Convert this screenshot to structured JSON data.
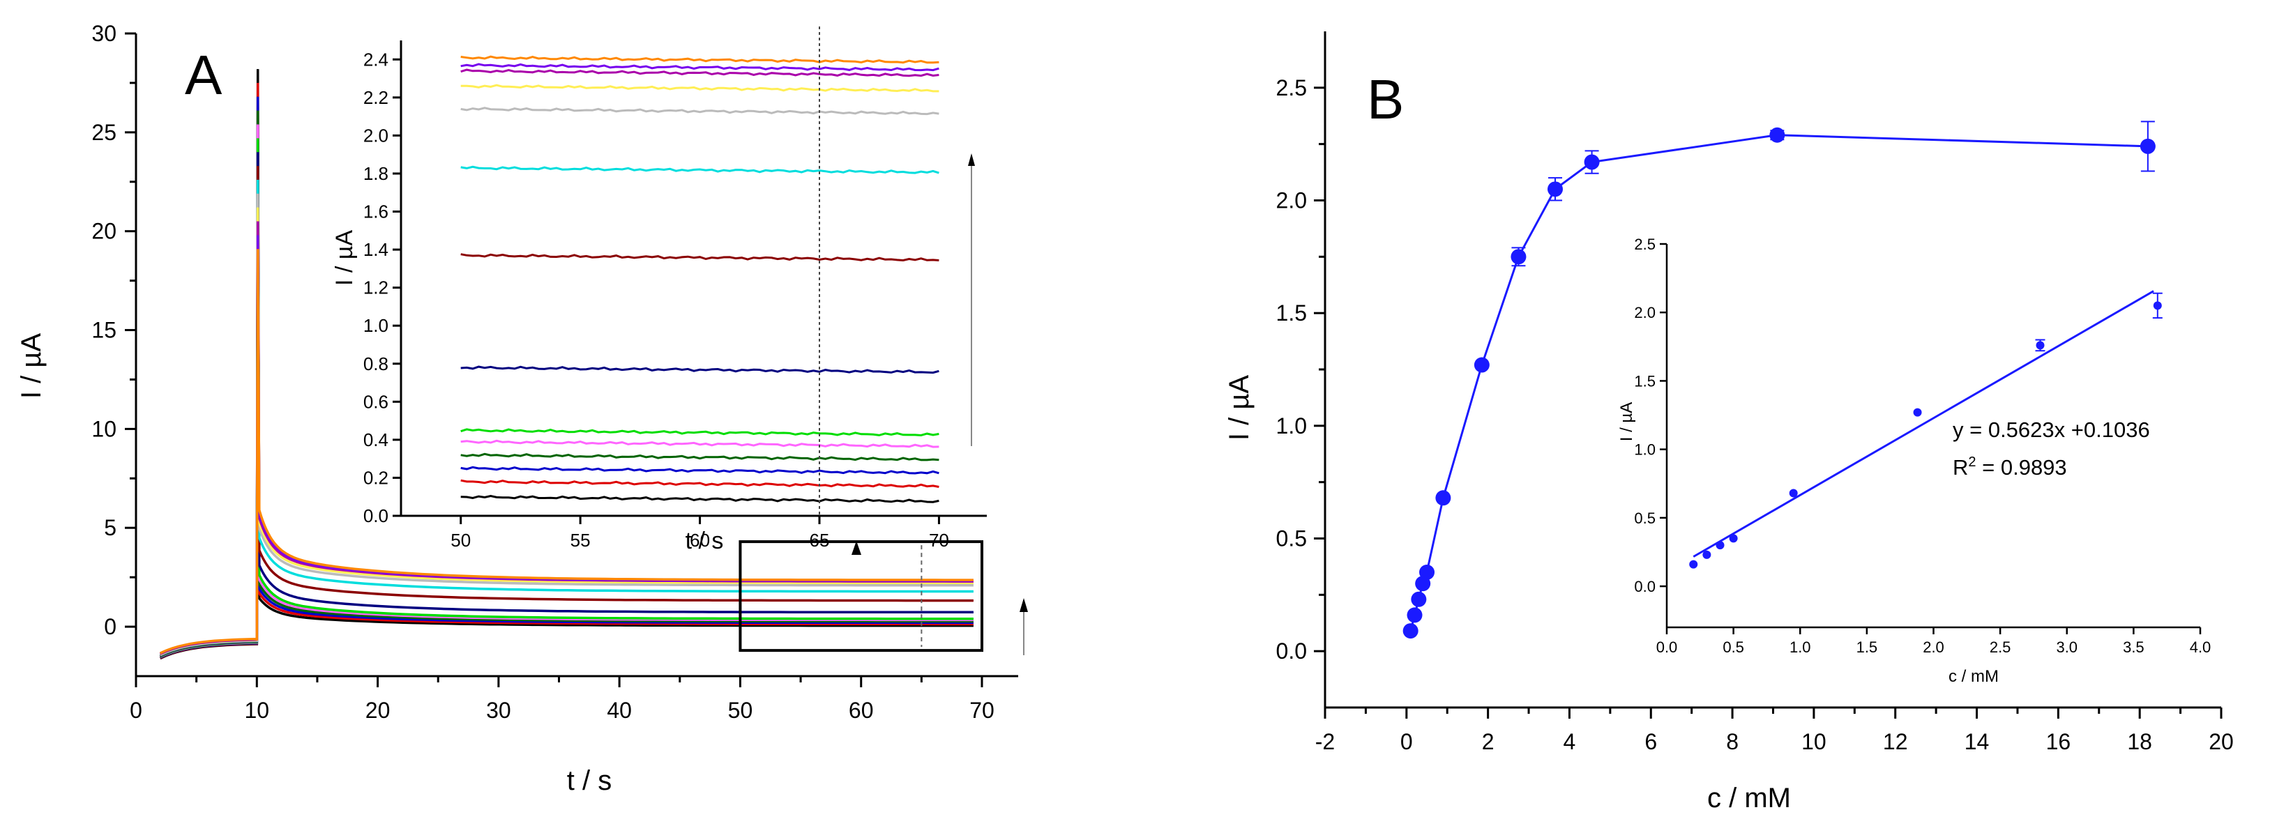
{
  "chart_data": [
    {
      "panel": "A",
      "type": "line",
      "panel_label": "A",
      "xlabel": "t / s",
      "ylabel": "I / µA",
      "xlim": [
        0,
        73
      ],
      "ylim": [
        -2.5,
        30
      ],
      "xticks": [
        0,
        10,
        20,
        30,
        40,
        50,
        60,
        70
      ],
      "yticks": [
        0,
        5,
        10,
        15,
        20,
        25,
        30
      ],
      "step_time": 10,
      "peak": 28.2,
      "series": [
        {
          "color": "#000000",
          "plateau": 0.1
        },
        {
          "color": "#dd0000",
          "plateau": 0.18
        },
        {
          "color": "#0000cc",
          "plateau": 0.25
        },
        {
          "color": "#006400",
          "plateau": 0.32
        },
        {
          "color": "#ff66ff",
          "plateau": 0.39
        },
        {
          "color": "#00dd00",
          "plateau": 0.45
        },
        {
          "color": "#000080",
          "plateau": 0.78
        },
        {
          "color": "#8b0000",
          "plateau": 1.37
        },
        {
          "color": "#00dddd",
          "plateau": 1.83
        },
        {
          "color": "#bbbbbb",
          "plateau": 2.14
        },
        {
          "color": "#ffee55",
          "plateau": 2.26
        },
        {
          "color": "#aa00aa",
          "plateau": 2.34
        },
        {
          "color": "#7700ee",
          "plateau": 2.37
        },
        {
          "color": "#ff8800",
          "plateau": 2.41
        }
      ],
      "zoom_box": {
        "x": [
          50,
          70
        ],
        "y": [
          -1.2,
          4.3
        ]
      },
      "inset": {
        "type": "line",
        "xlabel": "t / s",
        "ylabel": "I / µA",
        "xlim": [
          47.5,
          72
        ],
        "ylim": [
          0,
          2.5
        ],
        "xticks": [
          50,
          55,
          60,
          65,
          70
        ],
        "yticks": [
          0.0,
          0.2,
          0.4,
          0.6,
          0.8,
          1.0,
          1.2,
          1.4,
          1.6,
          1.8,
          2.0,
          2.2,
          2.4
        ],
        "xrange_data": [
          50,
          70
        ],
        "marker_line_x": 65
      }
    },
    {
      "panel": "B",
      "type": "scatter",
      "panel_label": "B",
      "xlabel": "c / mM",
      "ylabel": "I / µA",
      "xlim": [
        -2,
        20
      ],
      "ylim": [
        -0.25,
        2.75
      ],
      "xticks": [
        -2,
        0,
        2,
        4,
        6,
        8,
        10,
        12,
        14,
        16,
        18,
        20
      ],
      "yticks": [
        0.0,
        0.5,
        1.0,
        1.5,
        2.0,
        2.5
      ],
      "x": [
        0.1,
        0.2,
        0.3,
        0.4,
        0.5,
        0.9,
        1.85,
        2.75,
        3.65,
        4.55,
        9.1,
        18.2
      ],
      "y": [
        0.09,
        0.16,
        0.23,
        0.3,
        0.35,
        0.68,
        1.27,
        1.75,
        2.05,
        2.17,
        2.29,
        2.24
      ],
      "err": [
        0.01,
        0.01,
        0.01,
        0.01,
        0.01,
        0.01,
        0.01,
        0.04,
        0.05,
        0.05,
        0.02,
        0.11
      ],
      "inset": {
        "type": "scatter",
        "xlabel": "c / mM",
        "ylabel": "I / µA",
        "xlim": [
          0,
          4
        ],
        "ylim": [
          -0.3,
          2.5
        ],
        "xticks": [
          "0.0",
          "0.5",
          "1.0",
          "1.5",
          "2.0",
          "2.5",
          "3.0",
          "3.5",
          "4.0"
        ],
        "yticks": [
          "0.0",
          "0.5",
          "1.0",
          "1.5",
          "2.0",
          "2.5"
        ],
        "x": [
          0.2,
          0.3,
          0.4,
          0.5,
          0.95,
          1.88,
          2.8,
          3.68
        ],
        "y": [
          0.16,
          0.23,
          0.3,
          0.35,
          0.68,
          1.27,
          1.76,
          2.05
        ],
        "err": [
          0.01,
          0.01,
          0.01,
          0.01,
          0.01,
          0.01,
          0.04,
          0.09
        ],
        "fit": {
          "slope": 0.5623,
          "intercept": 0.1036,
          "x_range": [
            0.2,
            3.65
          ]
        },
        "equation": "y = 0.5623x +0.1036",
        "r2_label": "R",
        "r2_sup": "2",
        "r2_value": " = 0.9893"
      }
    }
  ]
}
